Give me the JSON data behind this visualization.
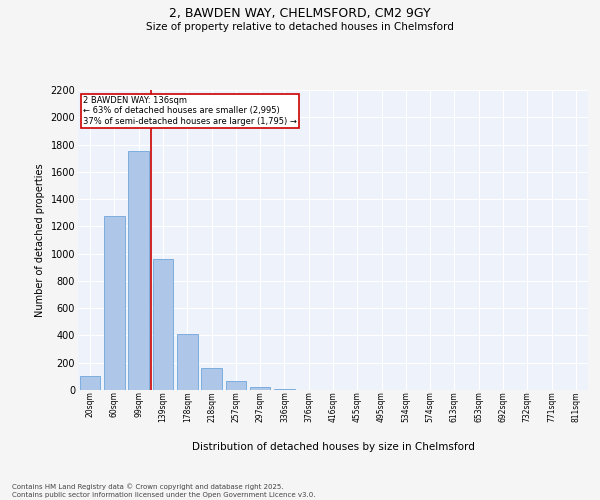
{
  "title_line1": "2, BAWDEN WAY, CHELMSFORD, CM2 9GY",
  "title_line2": "Size of property relative to detached houses in Chelmsford",
  "xlabel": "Distribution of detached houses by size in Chelmsford",
  "ylabel": "Number of detached properties",
  "categories": [
    "20sqm",
    "60sqm",
    "99sqm",
    "139sqm",
    "178sqm",
    "218sqm",
    "257sqm",
    "297sqm",
    "336sqm",
    "376sqm",
    "416sqm",
    "455sqm",
    "495sqm",
    "534sqm",
    "574sqm",
    "613sqm",
    "653sqm",
    "692sqm",
    "732sqm",
    "771sqm",
    "811sqm"
  ],
  "values": [
    100,
    1275,
    1750,
    960,
    410,
    160,
    65,
    25,
    10,
    0,
    0,
    0,
    0,
    0,
    0,
    0,
    0,
    0,
    0,
    0,
    0
  ],
  "bar_color": "#aec6e8",
  "bar_edge_color": "#5b9bd5",
  "vline_color": "#cc0000",
  "annotation_text": "2 BAWDEN WAY: 136sqm\n← 63% of detached houses are smaller (2,995)\n37% of semi-detached houses are larger (1,795) →",
  "annotation_box_color": "#cc0000",
  "ylim": [
    0,
    2200
  ],
  "yticks": [
    0,
    200,
    400,
    600,
    800,
    1000,
    1200,
    1400,
    1600,
    1800,
    2000,
    2200
  ],
  "bg_color": "#edf2fb",
  "grid_color": "#ffffff",
  "fig_bg_color": "#f5f5f5",
  "footer_line1": "Contains HM Land Registry data © Crown copyright and database right 2025.",
  "footer_line2": "Contains public sector information licensed under the Open Government Licence v3.0."
}
